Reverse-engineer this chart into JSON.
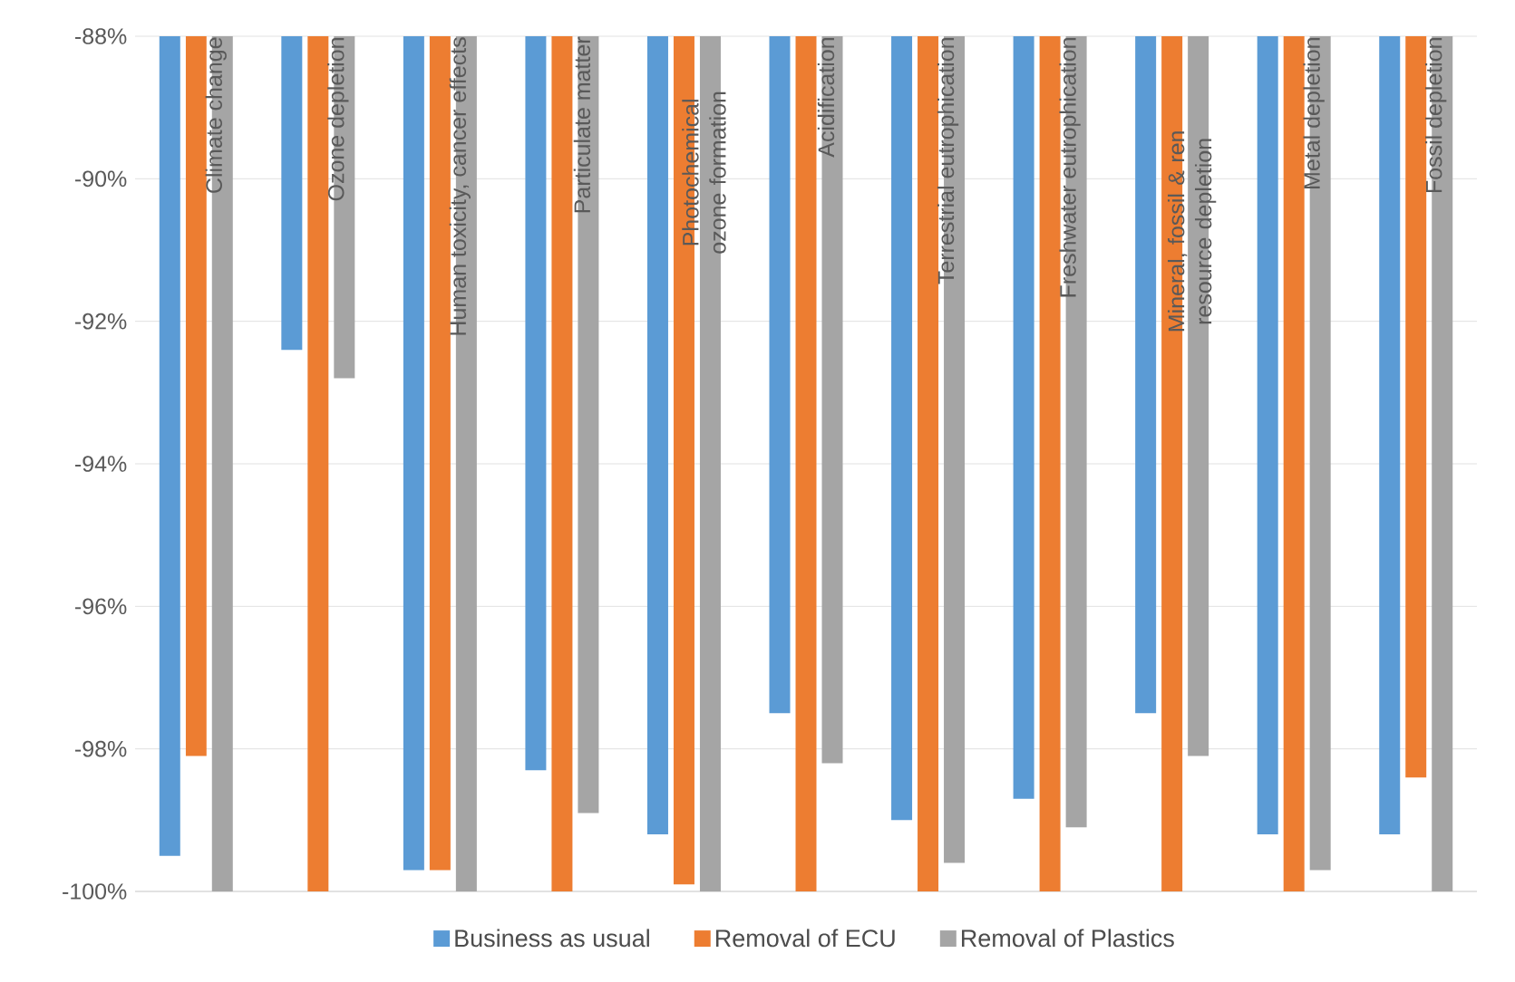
{
  "chart_data": {
    "type": "bar",
    "categories": [
      "Climate change",
      "Ozone depletion",
      "Human toxicity, cancer effects",
      "Particulate matter",
      "Photochemical ozone formation",
      "Acidification",
      "Terrestrial eutrophication",
      "Freshwater eutrophication",
      "Mineral, fossil & ren resource depletion",
      "Metal depletion",
      "Fossil depletion"
    ],
    "series": [
      {
        "name": "Business as usual",
        "color": "#5b9bd5",
        "values": [
          -99.5,
          -92.4,
          -99.7,
          -98.3,
          -99.2,
          -97.5,
          -99.0,
          -98.7,
          -97.5,
          -99.2,
          -99.2
        ]
      },
      {
        "name": "Removal of ECU",
        "color": "#ed7d31",
        "values": [
          -98.1,
          -100,
          -99.7,
          -100,
          -99.9,
          -100,
          -100,
          -100,
          -100,
          -100,
          -98.4
        ]
      },
      {
        "name": "Removal of Plastics",
        "color": "#a5a5a5",
        "values": [
          -100,
          -92.8,
          -100,
          -98.9,
          -100,
          -98.2,
          -99.6,
          -99.1,
          -98.1,
          -99.7,
          -100
        ]
      }
    ],
    "ylim": [
      -100,
      -88
    ],
    "yticks": [
      {
        "value": -100,
        "label": "-100%"
      },
      {
        "value": -98,
        "label": "-98%"
      },
      {
        "value": -96,
        "label": "-96%"
      },
      {
        "value": -94,
        "label": "-94%"
      },
      {
        "value": -92,
        "label": "-92%"
      },
      {
        "value": -90,
        "label": "-90%"
      },
      {
        "value": -88,
        "label": "-88%"
      }
    ],
    "grid": "y",
    "legend": "bottom"
  }
}
